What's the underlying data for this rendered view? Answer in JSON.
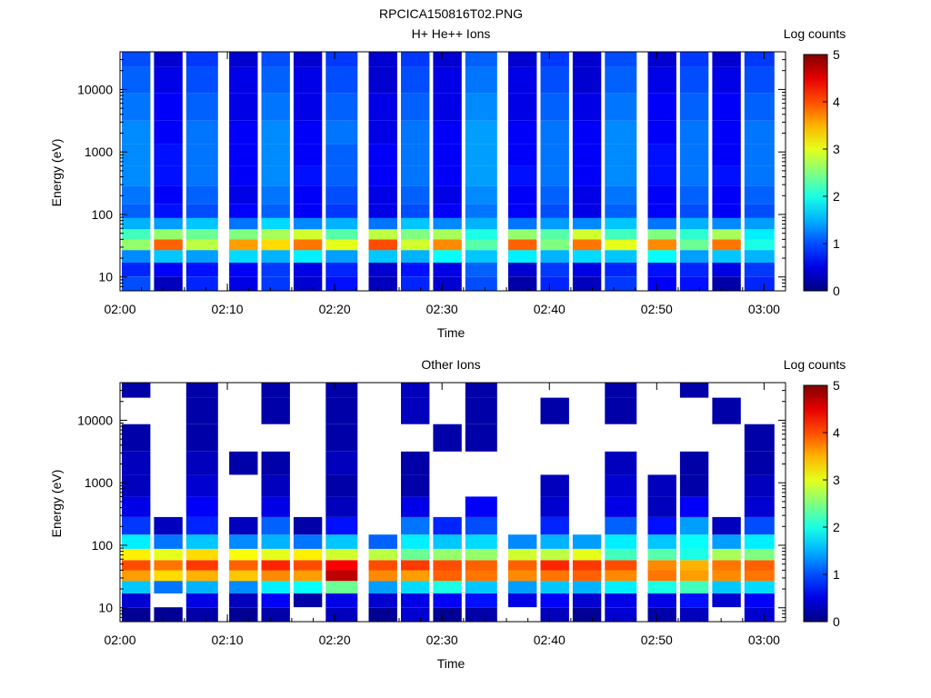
{
  "figure": {
    "title": "RPCICA150816T02.PNG"
  },
  "colorbar": {
    "label": "Log counts",
    "range": [
      0,
      5
    ],
    "ticks": [
      "0",
      "1",
      "2",
      "3",
      "4",
      "5"
    ],
    "colormap": "jet"
  },
  "chart_data": [
    {
      "type": "heatmap",
      "title": "H+ He++ Ions",
      "xlabel": "Time",
      "ylabel": "Energy (eV)",
      "yscale": "log",
      "xlim": [
        "02:00",
        "03:02"
      ],
      "ylim": [
        6,
        40000
      ],
      "x_ticks": [
        "02:00",
        "02:10",
        "02:20",
        "02:30",
        "02:40",
        "02:50",
        "03:00"
      ],
      "y_ticks": [
        "10",
        "100",
        "1000",
        "10000"
      ],
      "sweep_start_times": [
        "02:00",
        "02:03",
        "02:06",
        "02:10",
        "02:13",
        "02:16",
        "02:19",
        "02:23",
        "02:26",
        "02:29",
        "02:32",
        "02:36",
        "02:39",
        "02:42",
        "02:45",
        "02:49",
        "02:52",
        "02:55",
        "02:58"
      ],
      "energy_band_centers_eV": [
        8,
        13,
        22,
        33,
        48,
        70,
        110,
        200,
        400,
        900,
        2000,
        5000,
        15000,
        35000
      ],
      "log_counts": [
        [
          1.0,
          0.3,
          0.8,
          0.5,
          0.9,
          0.4,
          0.7,
          0.3,
          0.8,
          0.4,
          1.0,
          0.2,
          0.8,
          0.3,
          0.9,
          0.6,
          0.7,
          0.2,
          0.8
        ],
        [
          0.8,
          0.6,
          0.7,
          0.6,
          0.9,
          0.5,
          0.8,
          0.4,
          0.7,
          0.5,
          1.1,
          0.4,
          0.9,
          0.5,
          0.8,
          0.7,
          0.8,
          0.5,
          0.9
        ],
        [
          1.3,
          1.6,
          1.4,
          1.7,
          1.5,
          1.8,
          1.4,
          1.6,
          1.5,
          1.9,
          1.6,
          1.8,
          1.5,
          1.7,
          1.6,
          1.9,
          1.4,
          1.6,
          1.5
        ],
        [
          2.6,
          3.9,
          2.8,
          3.6,
          3.3,
          3.8,
          3.0,
          4.0,
          2.9,
          3.7,
          2.3,
          3.9,
          2.5,
          3.8,
          3.0,
          3.7,
          2.4,
          3.8,
          2.0
        ],
        [
          2.2,
          2.6,
          2.4,
          2.5,
          2.7,
          2.9,
          2.3,
          2.8,
          2.5,
          2.7,
          2.0,
          2.6,
          2.3,
          2.9,
          2.2,
          2.5,
          2.1,
          2.7,
          1.8
        ],
        [
          1.5,
          1.4,
          1.6,
          1.2,
          1.7,
          1.3,
          1.5,
          1.2,
          1.6,
          1.3,
          1.5,
          1.2,
          1.4,
          1.3,
          1.6,
          1.2,
          1.5,
          1.3,
          1.4
        ],
        [
          1.1,
          0.7,
          1.0,
          0.6,
          1.1,
          0.6,
          0.9,
          0.5,
          1.0,
          0.6,
          1.2,
          0.6,
          1.0,
          0.5,
          1.1,
          0.6,
          1.0,
          0.6,
          1.0
        ],
        [
          1.2,
          0.6,
          1.1,
          0.5,
          1.2,
          0.6,
          1.0,
          0.5,
          1.1,
          0.5,
          1.3,
          0.6,
          1.1,
          0.5,
          1.2,
          0.6,
          1.1,
          0.6,
          1.1
        ],
        [
          1.3,
          0.7,
          1.2,
          0.6,
          1.3,
          0.7,
          1.1,
          0.6,
          1.2,
          0.6,
          1.4,
          0.7,
          1.2,
          0.6,
          1.3,
          0.7,
          1.2,
          0.7,
          1.2
        ],
        [
          1.3,
          0.7,
          1.2,
          0.6,
          1.3,
          0.6,
          1.1,
          0.6,
          1.2,
          0.6,
          1.4,
          0.6,
          1.2,
          0.6,
          1.3,
          0.7,
          1.2,
          0.6,
          1.2
        ],
        [
          1.3,
          0.6,
          1.2,
          0.6,
          1.3,
          0.6,
          1.2,
          0.5,
          1.2,
          0.6,
          1.4,
          0.6,
          1.2,
          0.6,
          1.3,
          0.6,
          1.2,
          0.6,
          1.2
        ],
        [
          1.2,
          0.6,
          1.1,
          0.5,
          1.2,
          0.5,
          1.1,
          0.5,
          1.1,
          0.5,
          1.3,
          0.5,
          1.1,
          0.5,
          1.2,
          0.6,
          1.1,
          0.6,
          1.1
        ],
        [
          1.1,
          0.5,
          1.0,
          0.5,
          1.1,
          0.5,
          1.0,
          0.4,
          1.0,
          0.5,
          1.2,
          0.5,
          1.0,
          0.4,
          1.1,
          0.5,
          1.0,
          0.5,
          1.0
        ],
        [
          1.0,
          0.4,
          0.9,
          0.4,
          1.0,
          0.4,
          0.9,
          0.4,
          0.9,
          0.4,
          1.1,
          0.4,
          0.9,
          0.4,
          1.0,
          0.4,
          0.9,
          0.4,
          0.9
        ]
      ]
    },
    {
      "type": "heatmap",
      "title": "Other Ions",
      "xlabel": "Time",
      "ylabel": "Energy (eV)",
      "yscale": "log",
      "xlim": [
        "02:00",
        "03:02"
      ],
      "ylim": [
        6,
        40000
      ],
      "x_ticks": [
        "02:00",
        "02:10",
        "02:20",
        "02:30",
        "02:40",
        "02:50",
        "03:00"
      ],
      "y_ticks": [
        "10",
        "100",
        "1000",
        "10000"
      ],
      "sweep_start_times": [
        "02:00",
        "02:03",
        "02:06",
        "02:10",
        "02:13",
        "02:16",
        "02:19",
        "02:23",
        "02:26",
        "02:29",
        "02:32",
        "02:36",
        "02:39",
        "02:42",
        "02:45",
        "02:49",
        "02:52",
        "02:55",
        "02:58"
      ],
      "energy_band_centers_eV": [
        8,
        13,
        22,
        33,
        48,
        70,
        110,
        200,
        400,
        900,
        2000,
        5000,
        15000,
        35000
      ],
      "log_counts": [
        [
          0.1,
          0.1,
          0.2,
          0.1,
          0.2,
          null,
          0.3,
          0.1,
          0.4,
          0.1,
          0.2,
          null,
          0.3,
          0.1,
          0.4,
          0.2,
          0.3,
          null,
          0.4
        ],
        [
          0.4,
          null,
          0.5,
          0.3,
          0.6,
          0.2,
          0.5,
          0.4,
          0.5,
          0.6,
          0.7,
          0.5,
          0.6,
          0.4,
          0.5,
          0.5,
          0.7,
          0.4,
          0.6
        ],
        [
          1.6,
          1.2,
          1.5,
          1.3,
          1.8,
          1.9,
          2.4,
          1.4,
          1.7,
          2.0,
          1.6,
          1.4,
          1.6,
          1.5,
          1.8,
          2.0,
          2.2,
          1.6,
          1.7
        ],
        [
          3.6,
          3.3,
          3.5,
          3.4,
          3.7,
          3.6,
          4.7,
          3.7,
          3.6,
          3.9,
          3.8,
          3.7,
          3.8,
          3.9,
          3.7,
          3.8,
          3.6,
          3.7,
          3.8
        ],
        [
          4.0,
          3.8,
          4.1,
          3.9,
          4.2,
          4.0,
          4.4,
          4.0,
          4.1,
          4.0,
          3.9,
          3.9,
          4.2,
          4.1,
          4.0,
          3.7,
          3.5,
          3.8,
          3.9
        ],
        [
          3.2,
          3.0,
          3.3,
          3.1,
          3.0,
          3.2,
          2.9,
          2.8,
          2.4,
          2.6,
          2.6,
          2.9,
          2.8,
          3.0,
          2.2,
          2.3,
          2.0,
          2.7,
          2.5
        ],
        [
          1.8,
          1.2,
          1.6,
          1.3,
          1.5,
          1.2,
          1.6,
          1.1,
          1.8,
          1.6,
          1.7,
          1.3,
          1.5,
          1.4,
          1.8,
          1.6,
          1.9,
          1.4,
          1.8
        ],
        [
          0.9,
          0.3,
          0.8,
          0.3,
          1.1,
          0.2,
          0.7,
          null,
          1.2,
          0.8,
          1.0,
          null,
          0.8,
          null,
          1.1,
          0.7,
          1.4,
          0.3,
          1.0
        ],
        [
          0.5,
          null,
          0.6,
          null,
          0.5,
          null,
          0.3,
          null,
          0.5,
          null,
          0.6,
          null,
          0.4,
          null,
          0.5,
          0.3,
          0.6,
          null,
          0.4
        ],
        [
          0.3,
          null,
          0.4,
          null,
          0.3,
          null,
          0.2,
          null,
          0.2,
          null,
          null,
          null,
          0.3,
          null,
          0.4,
          0.3,
          0.2,
          null,
          0.3
        ],
        [
          0.3,
          null,
          0.3,
          0.2,
          0.2,
          null,
          0.3,
          null,
          0.2,
          null,
          null,
          null,
          null,
          null,
          0.3,
          null,
          0.2,
          null,
          0.2
        ],
        [
          0.2,
          null,
          0.2,
          null,
          null,
          null,
          0.2,
          null,
          null,
          0.2,
          0.2,
          null,
          null,
          null,
          null,
          null,
          null,
          null,
          0.2
        ],
        [
          null,
          null,
          0.2,
          null,
          0.2,
          null,
          0.2,
          null,
          0.3,
          null,
          0.2,
          null,
          0.2,
          null,
          0.2,
          null,
          null,
          0.2,
          null
        ],
        [
          0.2,
          null,
          0.2,
          null,
          0.2,
          null,
          0.2,
          null,
          0.3,
          null,
          0.2,
          null,
          null,
          null,
          0.2,
          null,
          0.2,
          null,
          null
        ]
      ]
    }
  ]
}
